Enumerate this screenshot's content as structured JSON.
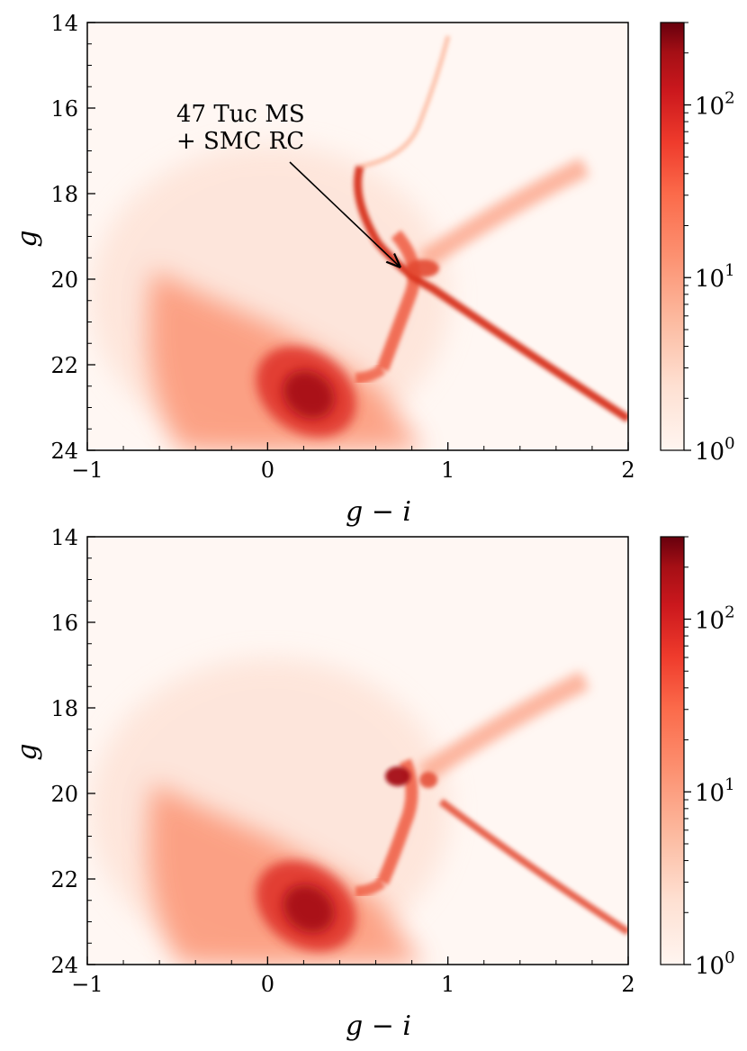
{
  "chart_data": [
    {
      "type": "heatmap",
      "panel": "top",
      "xlabel": "g − i",
      "ylabel": "g",
      "xlim": [
        -1,
        2
      ],
      "ylim": [
        24,
        14
      ],
      "y_inverted": true,
      "xticks": [
        -1,
        0,
        1,
        2
      ],
      "xtick_labels": [
        "−1",
        "0",
        "1",
        "2"
      ],
      "yticks": [
        14,
        16,
        18,
        20,
        22,
        24
      ],
      "ytick_labels": [
        "14",
        "16",
        "18",
        "20",
        "22",
        "24"
      ],
      "annotation": {
        "lines": [
          "47 Tuc MS",
          "+ SMC RC"
        ],
        "text_at": [
          -0.5,
          16.3
        ],
        "arrow_from": [
          0.13,
          17.3
        ],
        "arrow_to": [
          0.75,
          19.7
        ]
      },
      "colorbar": {
        "scale": "log",
        "range": [
          1,
          300
        ],
        "ticks": [
          1,
          10,
          100
        ],
        "tick_labels": [
          "10",
          "10",
          "10"
        ],
        "tick_exponents": [
          "0",
          "1",
          "2"
        ],
        "colormap": "Reds"
      },
      "features": [
        {
          "name": "Milky Way disk/halo main sequence",
          "x_range": [
            -0.6,
            0.9
          ],
          "g_range": [
            19.5,
            24
          ],
          "peak": [
            0.22,
            22.8
          ]
        },
        {
          "name": "SMC red giant branch",
          "x_range": [
            0.5,
            1.4
          ],
          "g_range": [
            17.4,
            22.5
          ]
        },
        {
          "name": "47 Tuc main sequence",
          "x_range": [
            0.5,
            2.0
          ],
          "g_range": [
            17.3,
            23.4
          ]
        },
        {
          "name": "47 Tuc red giant branch",
          "x_range": [
            0.45,
            1.1
          ],
          "g_range": [
            14.3,
            17.4
          ]
        },
        {
          "name": "SMC red clump",
          "center": [
            0.8,
            19.7
          ]
        }
      ]
    },
    {
      "type": "heatmap",
      "panel": "bottom",
      "xlabel": "g − i",
      "ylabel": "g",
      "xlim": [
        -1,
        2
      ],
      "ylim": [
        24,
        14
      ],
      "y_inverted": true,
      "xticks": [
        -1,
        0,
        1,
        2
      ],
      "xtick_labels": [
        "−1",
        "0",
        "1",
        "2"
      ],
      "yticks": [
        14,
        16,
        18,
        20,
        22,
        24
      ],
      "ytick_labels": [
        "14",
        "16",
        "18",
        "20",
        "22",
        "24"
      ],
      "colorbar": {
        "scale": "log",
        "range": [
          1,
          300
        ],
        "ticks": [
          1,
          10,
          100
        ],
        "tick_labels": [
          "10",
          "10",
          "10"
        ],
        "tick_exponents": [
          "0",
          "1",
          "2"
        ],
        "colormap": "Reds"
      },
      "features": [
        {
          "name": "Milky Way disk/halo main sequence",
          "x_range": [
            -0.6,
            0.9
          ],
          "g_range": [
            19.5,
            24
          ],
          "peak": [
            0.22,
            22.8
          ]
        },
        {
          "name": "SMC red giant branch",
          "x_range": [
            0.5,
            1.4
          ],
          "g_range": [
            17.4,
            22.5
          ]
        },
        {
          "name": "47 Tuc main sequence (faint)",
          "x_range": [
            0.9,
            2.0
          ],
          "g_range": [
            20.0,
            23.4
          ]
        },
        {
          "name": "SMC red clump",
          "center": [
            0.74,
            19.65
          ]
        },
        {
          "name": "secondary clump",
          "center": [
            0.9,
            19.7
          ]
        }
      ]
    }
  ]
}
